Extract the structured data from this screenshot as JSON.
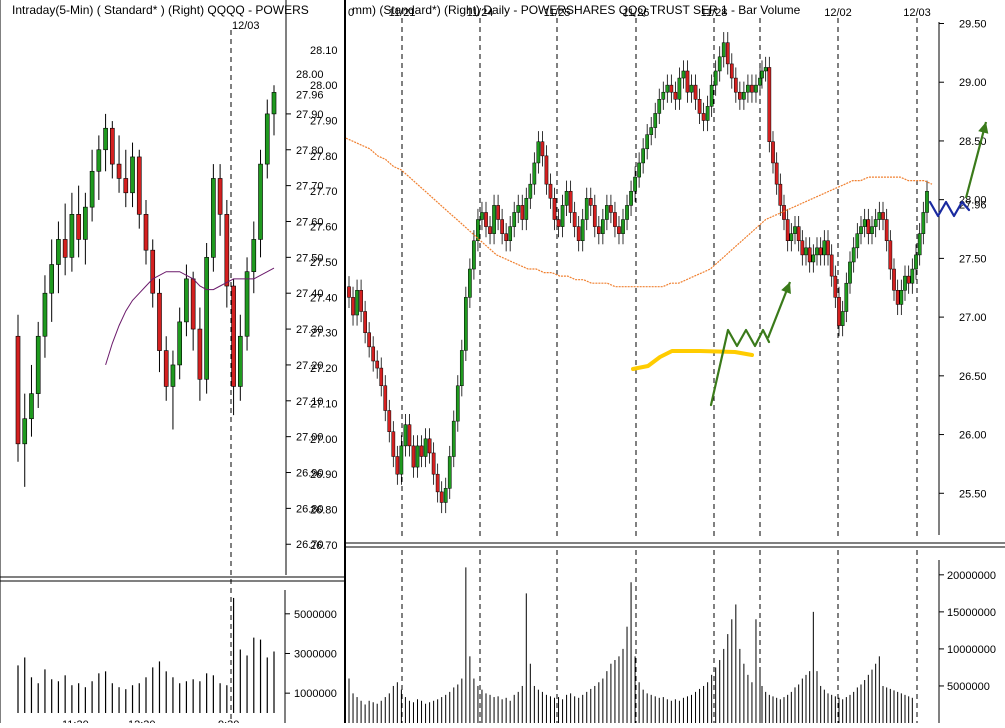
{
  "chart_data": [
    {
      "type": "candlestick",
      "title": "Intraday(5-Min) ( Standard* )  (Right)  QQQQ - POWERS",
      "date_marker": "12/03",
      "price_ticks": [
        27.9,
        27.8,
        27.7,
        27.6,
        27.5,
        27.4,
        27.3,
        27.2,
        27.1,
        27.0,
        26.9,
        26.8,
        26.7
      ],
      "price_tick_labels": [
        "27.90",
        "27.80",
        "27.70",
        "27.60",
        "27.50",
        "27.40",
        "27.30",
        "27.20",
        "27.10",
        "27.00",
        "26.90",
        "26.80",
        "26.70"
      ],
      "extra_price_labels": [
        {
          "value": 28.0,
          "text": "28.00"
        },
        {
          "value": 27.96,
          "text": "27.96"
        }
      ],
      "ylim": [
        26.67,
        28.12
      ],
      "volume_ticks": [
        5000000,
        3000000,
        1000000
      ],
      "volume_tick_labels": [
        "5000000",
        "3000000",
        "1000000"
      ],
      "volume_ylim": [
        0,
        6200000
      ],
      "x_labels": [
        "11:30",
        "12:30",
        "9:30"
      ],
      "candles": [
        {
          "o": 27.28,
          "h": 27.34,
          "l": 26.93,
          "c": 26.98,
          "v": 2400000
        },
        {
          "o": 26.98,
          "h": 27.12,
          "l": 26.86,
          "c": 27.05,
          "v": 2800000
        },
        {
          "o": 27.05,
          "h": 27.2,
          "l": 27.0,
          "c": 27.12,
          "v": 1800000
        },
        {
          "o": 27.12,
          "h": 27.32,
          "l": 27.08,
          "c": 27.28,
          "v": 1500000
        },
        {
          "o": 27.28,
          "h": 27.45,
          "l": 27.22,
          "c": 27.4,
          "v": 2200000
        },
        {
          "o": 27.4,
          "h": 27.55,
          "l": 27.32,
          "c": 27.48,
          "v": 1700000
        },
        {
          "o": 27.48,
          "h": 27.6,
          "l": 27.4,
          "c": 27.55,
          "v": 1600000
        },
        {
          "o": 27.55,
          "h": 27.65,
          "l": 27.45,
          "c": 27.5,
          "v": 1900000
        },
        {
          "o": 27.5,
          "h": 27.68,
          "l": 27.46,
          "c": 27.62,
          "v": 1400000
        },
        {
          "o": 27.62,
          "h": 27.7,
          "l": 27.5,
          "c": 27.55,
          "v": 1500000
        },
        {
          "o": 27.55,
          "h": 27.68,
          "l": 27.48,
          "c": 27.64,
          "v": 1300000
        },
        {
          "o": 27.64,
          "h": 27.8,
          "l": 27.6,
          "c": 27.74,
          "v": 1600000
        },
        {
          "o": 27.74,
          "h": 27.84,
          "l": 27.66,
          "c": 27.8,
          "v": 2000000
        },
        {
          "o": 27.8,
          "h": 27.9,
          "l": 27.74,
          "c": 27.86,
          "v": 2100000
        },
        {
          "o": 27.86,
          "h": 27.88,
          "l": 27.72,
          "c": 27.76,
          "v": 1500000
        },
        {
          "o": 27.76,
          "h": 27.84,
          "l": 27.68,
          "c": 27.72,
          "v": 1300000
        },
        {
          "o": 27.72,
          "h": 27.8,
          "l": 27.64,
          "c": 27.68,
          "v": 1200000
        },
        {
          "o": 27.68,
          "h": 27.82,
          "l": 27.64,
          "c": 27.78,
          "v": 1400000
        },
        {
          "o": 27.78,
          "h": 27.8,
          "l": 27.58,
          "c": 27.62,
          "v": 1500000
        },
        {
          "o": 27.62,
          "h": 27.66,
          "l": 27.48,
          "c": 27.52,
          "v": 1800000
        },
        {
          "o": 27.52,
          "h": 27.55,
          "l": 27.36,
          "c": 27.4,
          "v": 2300000
        },
        {
          "o": 27.4,
          "h": 27.44,
          "l": 27.18,
          "c": 27.24,
          "v": 2600000
        },
        {
          "o": 27.24,
          "h": 27.28,
          "l": 27.1,
          "c": 27.14,
          "v": 2100000
        },
        {
          "o": 27.14,
          "h": 27.24,
          "l": 27.02,
          "c": 27.2,
          "v": 1800000
        },
        {
          "o": 27.2,
          "h": 27.36,
          "l": 27.16,
          "c": 27.32,
          "v": 1500000
        },
        {
          "o": 27.32,
          "h": 27.48,
          "l": 27.28,
          "c": 27.44,
          "v": 1600000
        },
        {
          "o": 27.44,
          "h": 27.46,
          "l": 27.24,
          "c": 27.3,
          "v": 1700000
        },
        {
          "o": 27.3,
          "h": 27.36,
          "l": 27.1,
          "c": 27.16,
          "v": 1600000
        },
        {
          "o": 27.16,
          "h": 27.54,
          "l": 27.12,
          "c": 27.5,
          "v": 2000000
        },
        {
          "o": 27.5,
          "h": 27.76,
          "l": 27.46,
          "c": 27.72,
          "v": 1900000
        },
        {
          "o": 27.72,
          "h": 27.76,
          "l": 27.56,
          "c": 27.62,
          "v": 1500000
        },
        {
          "o": 27.62,
          "h": 27.66,
          "l": 27.36,
          "c": 27.42,
          "v": 1400000
        },
        {
          "o": 27.42,
          "h": 27.44,
          "l": 27.06,
          "c": 27.14,
          "v": 5800000
        },
        {
          "o": 27.14,
          "h": 27.34,
          "l": 27.1,
          "c": 27.28,
          "v": 3200000
        },
        {
          "o": 27.28,
          "h": 27.5,
          "l": 27.24,
          "c": 27.46,
          "v": 2900000
        },
        {
          "o": 27.46,
          "h": 27.6,
          "l": 27.4,
          "c": 27.55,
          "v": 3800000
        },
        {
          "o": 27.55,
          "h": 27.8,
          "l": 27.5,
          "c": 27.76,
          "v": 3700000
        },
        {
          "o": 27.76,
          "h": 27.94,
          "l": 27.72,
          "c": 27.9,
          "v": 2800000
        },
        {
          "o": 27.9,
          "h": 27.98,
          "l": 27.84,
          "c": 27.96,
          "v": 3100000
        }
      ],
      "moving_average": [
        null,
        null,
        null,
        null,
        null,
        null,
        null,
        null,
        null,
        null,
        null,
        null,
        null,
        27.2,
        27.26,
        27.31,
        27.35,
        27.38,
        27.4,
        27.42,
        27.44,
        27.45,
        27.46,
        27.46,
        27.46,
        27.45,
        27.44,
        27.42,
        27.41,
        27.41,
        27.42,
        27.43,
        27.44,
        27.44,
        27.44,
        27.44,
        27.45,
        27.46,
        27.47
      ]
    },
    {
      "type": "candlestick",
      "title": "mm) (Standard*)  (Right) Daily - POWERSHARES QQQ TRUST SER 1 - Bar Volume",
      "date_labels": [
        "0",
        "11/21",
        "11/24",
        "11/25",
        "11/26",
        "11/28",
        "12/02",
        "12/03"
      ],
      "price_ticks": [
        28.1,
        28.0,
        27.9,
        27.8,
        27.7,
        27.6,
        27.5,
        27.4,
        27.3,
        27.2,
        27.1,
        27.0,
        26.9,
        26.8,
        26.7
      ],
      "price_tick_labels": [
        "28.10",
        "28.00",
        "27.90",
        "27.80",
        "27.70",
        "27.60",
        "27.50",
        "27.40",
        "27.30",
        "27.20",
        "27.10",
        "27.00",
        "26.90",
        "26.80",
        "26.70"
      ],
      "ylim": [
        26.68,
        28.17
      ],
      "right_axis_ticks": [
        29.5,
        29.0,
        28.5,
        28.0,
        27.5,
        27.0,
        26.5,
        26.0,
        25.5
      ],
      "right_axis_tick_labels": [
        "29.50",
        "29.00",
        "28.50",
        "28.00",
        "27.50",
        "27.00",
        "26.50",
        "26.00",
        "25.50"
      ],
      "right_axis_extra_label": {
        "value": 27.96,
        "text": "27.96"
      },
      "right_ylim": [
        25.0,
        29.7
      ],
      "volume_ticks": [
        20000000,
        15000000,
        10000000,
        5000000
      ],
      "volume_tick_labels": [
        "20000000",
        "15000000",
        "10000000",
        "5000000"
      ],
      "volume_ylim": [
        0,
        22000000
      ],
      "session_closes": [
        27.4,
        27.35,
        27.42,
        27.36,
        27.3,
        27.26,
        27.22,
        27.2,
        27.15,
        27.08,
        27.02,
        26.95,
        26.9,
        26.98,
        27.04,
        26.98,
        26.92,
        26.98,
        26.95,
        27.0,
        26.96,
        26.9,
        26.85,
        26.82,
        26.86,
        26.95,
        27.05,
        27.15,
        27.25,
        27.4,
        27.48,
        27.56,
        27.62,
        27.64,
        27.6,
        27.58,
        27.66,
        27.62,
        27.58,
        27.56,
        27.6,
        27.64,
        27.66,
        27.62,
        27.68,
        27.72,
        27.78,
        27.84,
        27.8,
        27.72,
        27.68,
        27.62,
        27.6,
        27.66,
        27.7,
        27.64,
        27.6,
        27.56,
        27.62,
        27.68,
        27.66,
        27.6,
        27.58,
        27.62,
        27.66,
        27.64,
        27.6,
        27.58,
        27.62,
        27.66,
        27.7,
        27.74,
        27.78,
        27.82,
        27.86,
        27.88,
        27.92,
        27.96,
        27.98,
        28.0,
        27.98,
        27.96,
        28.02,
        28.04,
        27.98,
        28.0,
        27.96,
        27.92,
        27.9,
        27.94,
        28.0,
        28.04,
        28.08,
        28.12,
        28.06,
        28.02,
        27.98,
        27.96,
        27.98,
        28.0,
        27.98,
        28.0,
        28.02,
        28.04,
        28.05,
        27.84,
        27.78,
        27.72,
        27.66,
        27.62,
        27.56,
        27.58,
        27.6,
        27.56,
        27.52,
        27.54,
        27.5,
        27.52,
        27.54,
        27.52,
        27.56,
        27.52,
        27.46,
        27.4,
        27.32,
        27.36,
        27.44,
        27.5,
        27.54,
        27.58,
        27.6,
        27.62,
        27.58,
        27.6,
        27.62,
        27.64,
        27.62,
        27.56,
        27.48,
        27.42,
        27.38,
        27.42,
        27.46,
        27.44,
        27.48,
        27.52,
        27.58,
        27.64,
        27.7
      ],
      "session_volumes": [
        6000000,
        4000000,
        3500000,
        3000000,
        2500000,
        3000000,
        2800000,
        2600000,
        3000000,
        3500000,
        4000000,
        5000000,
        5500000,
        4500000,
        3500000,
        3000000,
        2800000,
        3200000,
        3000000,
        2600000,
        2800000,
        3000000,
        3200000,
        3500000,
        3800000,
        4200000,
        4800000,
        5200000,
        6000000,
        21000000,
        9000000,
        6000000,
        5000000,
        4500000,
        4000000,
        3800000,
        3500000,
        3600000,
        3200000,
        3400000,
        3000000,
        3800000,
        4200000,
        5000000,
        17500000,
        8000000,
        5000000,
        4500000,
        4200000,
        3800000,
        3600000,
        3400000,
        3500000,
        3200000,
        3800000,
        4000000,
        3600000,
        3400000,
        3800000,
        4200000,
        4600000,
        5000000,
        5500000,
        6000000,
        7000000,
        8000000,
        8500000,
        9000000,
        10000000,
        13000000,
        19000000,
        9000000,
        5500000,
        4500000,
        4000000,
        3800000,
        3600000,
        3400000,
        3500000,
        3200000,
        3000000,
        3200000,
        3000000,
        3400000,
        3600000,
        3800000,
        4200000,
        4600000,
        5000000,
        5500000,
        6500000,
        7500000,
        8500000,
        10000000,
        12000000,
        14000000,
        16000000,
        10000000,
        8000000,
        6500000,
        5500000,
        14000000,
        7000000,
        5000000,
        4200000,
        3800000,
        3600000,
        3400000,
        3200000,
        3500000,
        3800000,
        4200000,
        4800000,
        5200000,
        6000000,
        6500000,
        7000000,
        15000000,
        7000000,
        5000000,
        4500000,
        4000000,
        3800000,
        3600000,
        3400000,
        3200000,
        3500000,
        3800000,
        4200000,
        4800000,
        5200000,
        5800000,
        6500000,
        7200000,
        8000000,
        9000000,
        5000000,
        4800000,
        4600000,
        4400000,
        4200000,
        4000000,
        3800000,
        3600000,
        3400000
      ],
      "moving_average": [
        27.85,
        27.84,
        27.83,
        27.82,
        27.8,
        27.79,
        27.77,
        27.76,
        27.74,
        27.72,
        27.7,
        27.68,
        27.66,
        27.64,
        27.62,
        27.6,
        27.58,
        27.56,
        27.54,
        27.52,
        27.51,
        27.5,
        27.49,
        27.48,
        27.48,
        27.47,
        27.47,
        27.46,
        27.46,
        27.45,
        27.45,
        27.44,
        27.44,
        27.44,
        27.43,
        27.43,
        27.43,
        27.43,
        27.43,
        27.43,
        27.43,
        27.44,
        27.44,
        27.45,
        27.46,
        27.47,
        27.48,
        27.5,
        27.52,
        27.54,
        27.56,
        27.58,
        27.6,
        27.62,
        27.63,
        27.64,
        27.65,
        27.66,
        27.67,
        27.68,
        27.69,
        27.7,
        27.71,
        27.72,
        27.73,
        27.73,
        27.74,
        27.74,
        27.74,
        27.74,
        27.74,
        27.73,
        27.73,
        27.73,
        27.72
      ],
      "annotations": [
        {
          "type": "yellow-base-line",
          "color": "#ffcc00",
          "points": [
            [
              633,
              369
            ],
            [
              648,
              366
            ],
            [
              660,
              357
            ],
            [
              672,
              351
            ],
            [
              700,
              351
            ],
            [
              735,
              352
            ],
            [
              752,
              355
            ]
          ]
        },
        {
          "type": "green-zigzag",
          "color": "#3a7a1a",
          "points": [
            [
              711,
              405
            ],
            [
              728,
              330
            ],
            [
              737,
              346
            ],
            [
              746,
              330
            ],
            [
              755,
              346
            ],
            [
              763,
              330
            ],
            [
              769,
              342
            ]
          ]
        },
        {
          "type": "green-arrow",
          "color": "#3a7a1a",
          "from": [
            768,
            338
          ],
          "to": [
            790,
            282
          ]
        },
        {
          "type": "blue-zigzag",
          "color": "#1a2aa0",
          "points": [
            [
              930,
              202
            ],
            [
              938,
              216
            ],
            [
              946,
              202
            ],
            [
              954,
              216
            ],
            [
              962,
              202
            ],
            [
              969,
              210
            ]
          ]
        },
        {
          "type": "green-arrow",
          "color": "#3a7a1a",
          "from": [
            966,
            198
          ],
          "to": [
            986,
            122
          ]
        }
      ]
    }
  ],
  "colors": {
    "up_candle": "#1f9a1f",
    "down_candle": "#d42020",
    "left_ma": "#6b1a6b",
    "right_ma": "#f08030",
    "volume_bar": "#000000",
    "session_divider": "#000000"
  }
}
